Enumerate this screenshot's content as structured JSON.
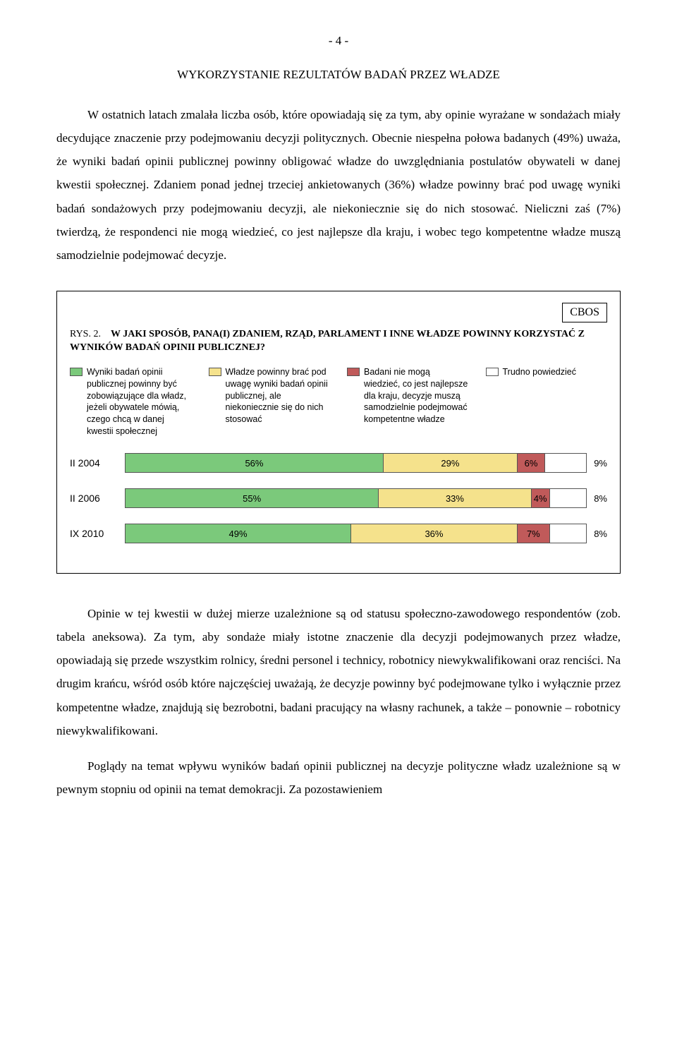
{
  "page_number": "- 4 -",
  "section_title": "WYKORZYSTANIE REZULTATÓW BADAŃ PRZEZ WŁADZE",
  "para1": "W ostatnich latach zmalała liczba osób, które opowiadają się za tym, aby opinie wyrażane w sondażach miały decydujące znaczenie przy podejmowaniu decyzji politycznych. Obecnie niespełna połowa badanych (49%) uważa, że wyniki badań opinii publicznej powinny obligować władze do uwzględniania postulatów obywateli w danej kwestii społecznej. Zdaniem ponad jednej trzeciej ankietowanych (36%) władze powinny brać pod uwagę wyniki badań sondażowych przy podejmowaniu decyzji, ale niekoniecznie się do nich stosować. Nieliczni zaś (7%) twierdzą, że respondenci nie mogą wiedzieć, co jest najlepsze dla kraju, i wobec tego kompetentne władze muszą samodzielnie podejmować decyzje.",
  "figure": {
    "cbos": "CBOS",
    "prefix": "RYS. 2.",
    "title": "W JAKI SPOSÓB, PANA(I) ZDANIEM, RZĄD, PARLAMENT I INNE WŁADZE POWINNY KORZYSTAĆ Z WYNIKÓW BADAŃ OPINII PUBLICZNEJ?",
    "legend": [
      {
        "color": "#7bc97b",
        "label": "Wyniki badań opinii publicznej powinny być zobowiązujące dla władz, jeżeli obywatele mówią, czego chcą w danej kwestii społecznej"
      },
      {
        "color": "#f5e28c",
        "label": "Władze powinny brać pod uwagę wyniki badań opinii publicznej, ale niekoniecznie się do nich stosować"
      },
      {
        "color": "#c05a5a",
        "label": "Badani nie mogą wiedzieć, co jest najlepsze dla kraju, decyzje muszą samodzielnie podejmować kompetentne władze"
      },
      {
        "color": "#ffffff",
        "label": "Trudno powiedzieć"
      }
    ],
    "chart": {
      "type": "stacked-bar-horizontal",
      "rows": [
        {
          "label": "II 2004",
          "segs": [
            {
              "v": 56,
              "t": "56%"
            },
            {
              "v": 29,
              "t": "29%"
            },
            {
              "v": 6,
              "t": "6%"
            },
            {
              "v": 9,
              "t": "9%"
            }
          ]
        },
        {
          "label": "II 2006",
          "segs": [
            {
              "v": 55,
              "t": "55%"
            },
            {
              "v": 33,
              "t": "33%"
            },
            {
              "v": 4,
              "t": "4%"
            },
            {
              "v": 8,
              "t": "8%"
            }
          ]
        },
        {
          "label": "IX 2010",
          "segs": [
            {
              "v": 49,
              "t": "49%"
            },
            {
              "v": 36,
              "t": "36%"
            },
            {
              "v": 7,
              "t": "7%"
            },
            {
              "v": 8,
              "t": "8%"
            }
          ]
        }
      ],
      "colors": [
        "#7bc97b",
        "#f5e28c",
        "#c05a5a",
        "#ffffff"
      ],
      "border_color": "#555555",
      "label_fontsize": 14,
      "value_fontsize": 13
    }
  },
  "para2": "Opinie w tej kwestii w dużej mierze uzależnione są od statusu społeczno-zawodowego respondentów (zob. tabela aneksowa). Za tym, aby sondaże miały istotne znaczenie dla decyzji podejmowanych przez władze, opowiadają się przede wszystkim rolnicy, średni personel i technicy, robotnicy niewykwalifikowani oraz renciści. Na drugim krańcu, wśród osób które najczęściej uważają, że decyzje powinny być podejmowane tylko i wyłącznie przez kompetentne władze, znajdują się bezrobotni, badani pracujący na własny rachunek, a także – ponownie – robotnicy niewykwalifikowani.",
  "para3": "Poglądy na temat wpływu wyników badań opinii publicznej na decyzje polityczne władz uzależnione są w pewnym stopniu od opinii na temat demokracji. Za pozostawieniem"
}
